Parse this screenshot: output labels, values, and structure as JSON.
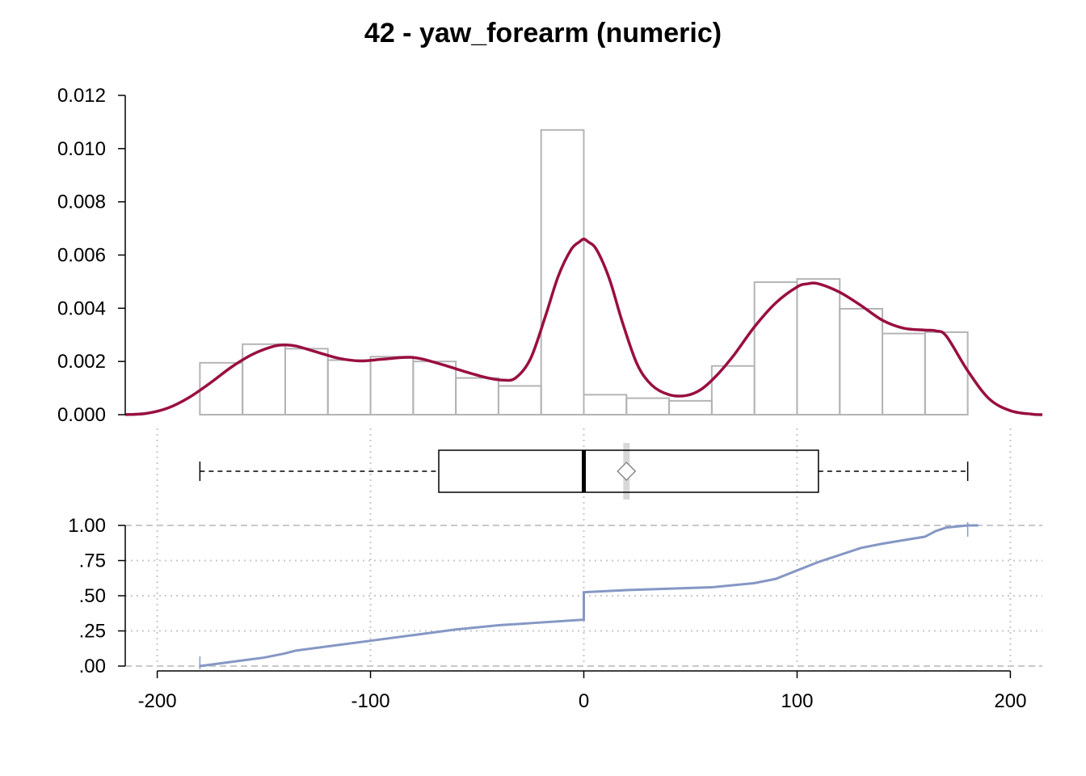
{
  "title": "42 - yaw_forearm (numeric)",
  "colors": {
    "density": "#990f40",
    "histogram": "#b4b4b4",
    "ecdf": "#8597c4",
    "grid": "#c8c8c8",
    "mean_band": "#d8d8d8",
    "axis": "#000000"
  },
  "chart_data": [
    {
      "type": "histogram",
      "role": "histogram-with-density",
      "xlim": [
        -215,
        215
      ],
      "ylim": [
        0,
        0.012
      ],
      "y_ticks": [
        0,
        0.002,
        0.004,
        0.006,
        0.008,
        0.01,
        0.012
      ],
      "y_tick_labels": [
        "0.000",
        "0.002",
        "0.004",
        "0.006",
        "0.008",
        "0.010",
        "0.012"
      ],
      "bins": [
        {
          "x0": -180,
          "x1": -160,
          "y": 0.00195
        },
        {
          "x0": -160,
          "x1": -140,
          "y": 0.00265
        },
        {
          "x0": -140,
          "x1": -120,
          "y": 0.00248
        },
        {
          "x0": -120,
          "x1": -100,
          "y": 0.00205
        },
        {
          "x0": -100,
          "x1": -80,
          "y": 0.00218
        },
        {
          "x0": -80,
          "x1": -60,
          "y": 0.002
        },
        {
          "x0": -60,
          "x1": -40,
          "y": 0.00138
        },
        {
          "x0": -40,
          "x1": -20,
          "y": 0.00108
        },
        {
          "x0": -20,
          "x1": 0,
          "y": 0.0107
        },
        {
          "x0": 0,
          "x1": 20,
          "y": 0.00075
        },
        {
          "x0": 20,
          "x1": 40,
          "y": 0.00062
        },
        {
          "x0": 40,
          "x1": 60,
          "y": 0.00052
        },
        {
          "x0": 60,
          "x1": 80,
          "y": 0.00183
        },
        {
          "x0": 80,
          "x1": 100,
          "y": 0.00498
        },
        {
          "x0": 100,
          "x1": 120,
          "y": 0.0051
        },
        {
          "x0": 120,
          "x1": 140,
          "y": 0.00398
        },
        {
          "x0": 140,
          "x1": 160,
          "y": 0.00305
        },
        {
          "x0": 160,
          "x1": 180,
          "y": 0.0031
        }
      ],
      "density": {
        "x": [
          -215,
          -205,
          -195,
          -185,
          -175,
          -165,
          -155,
          -145,
          -140,
          -135,
          -125,
          -115,
          -105,
          -95,
          -85,
          -80,
          -75,
          -65,
          -55,
          -45,
          -38,
          -32,
          -25,
          -18,
          -12,
          -6,
          -2,
          0,
          2,
          6,
          12,
          18,
          25,
          32,
          40,
          48,
          55,
          62,
          70,
          80,
          90,
          100,
          105,
          110,
          120,
          130,
          140,
          150,
          160,
          165,
          170,
          180,
          190,
          200,
          210,
          215
        ],
        "y": [
          0,
          5e-05,
          0.00025,
          0.00065,
          0.0012,
          0.0018,
          0.00228,
          0.00258,
          0.00262,
          0.00258,
          0.00235,
          0.00212,
          0.00202,
          0.00208,
          0.00215,
          0.00215,
          0.00208,
          0.00185,
          0.0016,
          0.00138,
          0.0013,
          0.00138,
          0.0021,
          0.0037,
          0.0052,
          0.0062,
          0.0065,
          0.0066,
          0.0065,
          0.0062,
          0.0051,
          0.0035,
          0.0019,
          0.0011,
          0.00075,
          0.00072,
          0.00095,
          0.00145,
          0.0022,
          0.0033,
          0.0042,
          0.0048,
          0.00492,
          0.00492,
          0.0046,
          0.0041,
          0.00355,
          0.00325,
          0.00318,
          0.00315,
          0.00295,
          0.00165,
          0.0006,
          0.00015,
          2e-05,
          0
        ]
      }
    },
    {
      "type": "box",
      "role": "boxplot",
      "min": -180,
      "q1": -68,
      "median": 0,
      "mean": 20,
      "q3": 110,
      "max": 180
    },
    {
      "type": "line",
      "role": "ecdf",
      "xlim": [
        -215,
        215
      ],
      "ylim": [
        0,
        1
      ],
      "x_ticks": [
        -200,
        -100,
        0,
        100,
        200
      ],
      "x_tick_labels": [
        "-200",
        "-100",
        "0",
        "100",
        "200"
      ],
      "y_ticks": [
        0,
        0.25,
        0.5,
        0.75,
        1
      ],
      "y_tick_labels": [
        ".00",
        ".25",
        ".50",
        ".75",
        "1.00"
      ],
      "x": [
        -180,
        -170,
        -160,
        -150,
        -140,
        -135,
        -120,
        -100,
        -80,
        -60,
        -40,
        -20,
        0,
        0,
        20,
        40,
        60,
        80,
        90,
        100,
        110,
        120,
        130,
        140,
        150,
        160,
        165,
        170,
        180
      ],
      "y": [
        0,
        0.02,
        0.04,
        0.06,
        0.09,
        0.11,
        0.14,
        0.18,
        0.22,
        0.26,
        0.29,
        0.31,
        0.33,
        0.525,
        0.54,
        0.55,
        0.56,
        0.59,
        0.62,
        0.68,
        0.74,
        0.79,
        0.84,
        0.87,
        0.895,
        0.92,
        0.96,
        0.985,
        1.0
      ]
    }
  ]
}
